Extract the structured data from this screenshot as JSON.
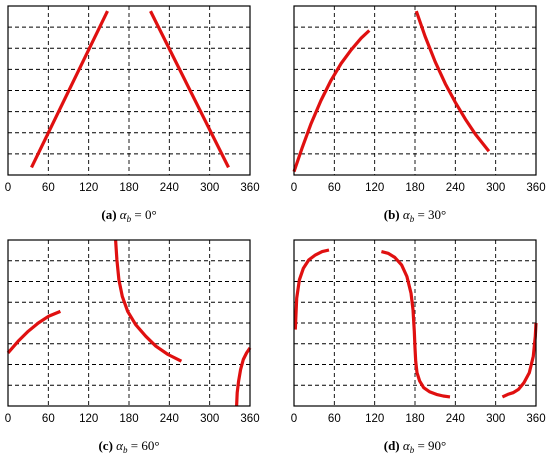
{
  "chart_data": [
    {
      "type": "line",
      "caption": {
        "tag": "(a)",
        "symbol": "α",
        "subscript": "b",
        "value": " = 0°"
      },
      "xlim": [
        0,
        360
      ],
      "x_ticks": [
        "0",
        "60",
        "120",
        "180",
        "240",
        "300",
        "360"
      ],
      "grid": true,
      "color": "#e01010",
      "series": [
        {
          "x": [
            35,
            148
          ],
          "y": [
            0.045,
            0.97
          ]
        },
        {
          "x": [
            212,
            328
          ],
          "y": [
            0.97,
            0.045
          ]
        }
      ]
    },
    {
      "type": "line",
      "caption": {
        "tag": "(b)",
        "symbol": "α",
        "subscript": "b",
        "value": " = 30°"
      },
      "xlim": [
        0,
        360
      ],
      "x_ticks": [
        "0",
        "60",
        "120",
        "180",
        "240",
        "300",
        "360"
      ],
      "grid": true,
      "color": "#e01010",
      "series": [
        {
          "x": [
            0,
            12,
            25,
            40,
            55,
            70,
            85,
            100,
            112
          ],
          "y": [
            0.02,
            0.16,
            0.3,
            0.44,
            0.56,
            0.66,
            0.74,
            0.81,
            0.855
          ]
        },
        {
          "x": [
            182,
            195,
            210,
            225,
            240,
            255,
            270,
            290
          ],
          "y": [
            0.97,
            0.82,
            0.67,
            0.54,
            0.43,
            0.33,
            0.24,
            0.14
          ]
        }
      ]
    },
    {
      "type": "line",
      "caption": {
        "tag": "(c)",
        "symbol": "α",
        "subscript": "b",
        "value": " = 60°"
      },
      "xlim": [
        0,
        360
      ],
      "x_ticks": [
        "0",
        "60",
        "120",
        "180",
        "240",
        "300",
        "360"
      ],
      "grid": true,
      "color": "#e01010",
      "series": [
        {
          "x": [
            0,
            15,
            30,
            45,
            60,
            78
          ],
          "y": [
            0.32,
            0.39,
            0.45,
            0.5,
            0.54,
            0.57
          ]
        },
        {
          "x": [
            160,
            162,
            165,
            170,
            178,
            190,
            205,
            220,
            238,
            258
          ],
          "y": [
            1.0,
            0.88,
            0.76,
            0.66,
            0.57,
            0.49,
            0.42,
            0.36,
            0.31,
            0.27
          ]
        },
        {
          "x": [
            340,
            341,
            343,
            346,
            350,
            355,
            360
          ],
          "y": [
            0.0,
            0.08,
            0.15,
            0.22,
            0.28,
            0.32,
            0.35
          ]
        }
      ]
    },
    {
      "type": "line",
      "caption": {
        "tag": "(d)",
        "symbol": "α",
        "subscript": "b",
        "value": " = 90°"
      },
      "xlim": [
        0,
        360
      ],
      "x_ticks": [
        "0",
        "60",
        "120",
        "180",
        "240",
        "300",
        "360"
      ],
      "grid": true,
      "color": "#e01010",
      "series": [
        {
          "x": [
            2,
            4,
            8,
            14,
            22,
            32,
            42,
            52
          ],
          "y": [
            0.46,
            0.65,
            0.76,
            0.83,
            0.88,
            0.91,
            0.93,
            0.94
          ]
        },
        {
          "x": [
            130,
            140,
            150,
            160,
            168,
            174,
            177,
            179,
            180,
            181,
            183,
            187,
            193,
            202,
            212,
            222,
            232
          ],
          "y": [
            0.93,
            0.92,
            0.895,
            0.85,
            0.78,
            0.68,
            0.58,
            0.45,
            0.35,
            0.27,
            0.2,
            0.15,
            0.11,
            0.085,
            0.07,
            0.06,
            0.055
          ]
        },
        {
          "x": [
            310,
            318,
            326,
            334,
            342,
            350,
            356,
            359,
            360
          ],
          "y": [
            0.055,
            0.07,
            0.08,
            0.1,
            0.14,
            0.2,
            0.3,
            0.42,
            0.5
          ]
        }
      ]
    }
  ]
}
